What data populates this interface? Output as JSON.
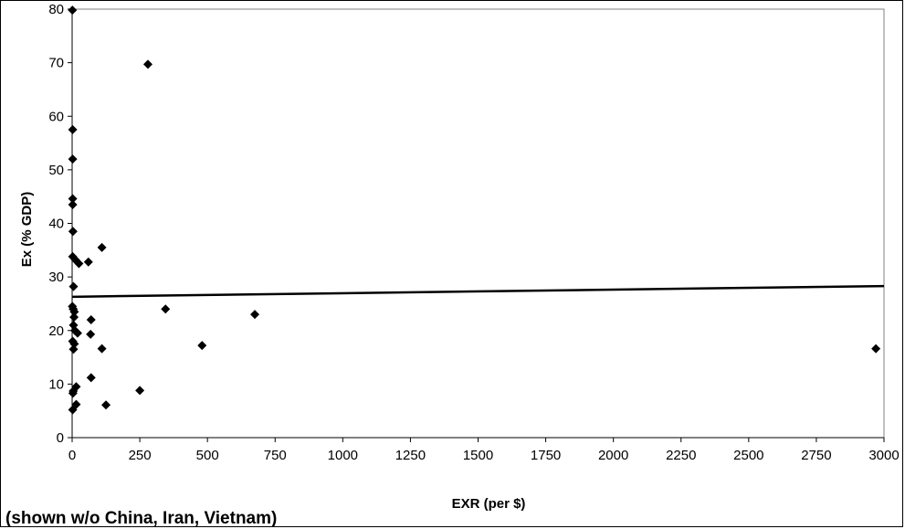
{
  "chart_data": {
    "type": "scatter",
    "title": "",
    "xlabel": "EXR (per $)",
    "ylabel": "Ex (% GDP)",
    "note": "(shown w/o China, Iran, Vietnam)",
    "xlim": [
      0,
      3000
    ],
    "ylim": [
      0,
      80
    ],
    "xticks": [
      0,
      250,
      500,
      750,
      1000,
      1250,
      1500,
      1750,
      2000,
      2250,
      2500,
      2750,
      3000
    ],
    "yticks": [
      0,
      10,
      20,
      30,
      40,
      50,
      60,
      70,
      80
    ],
    "grid": false,
    "legend": "none",
    "marker": "diamond",
    "marker_color": "#000000",
    "points": [
      {
        "x": 1,
        "y": 79.8
      },
      {
        "x": 280,
        "y": 69.7
      },
      {
        "x": 2,
        "y": 57.5
      },
      {
        "x": 2,
        "y": 52
      },
      {
        "x": 2,
        "y": 44.6
      },
      {
        "x": 2,
        "y": 43.5
      },
      {
        "x": 3,
        "y": 38.5
      },
      {
        "x": 110,
        "y": 35.5
      },
      {
        "x": 2,
        "y": 33.8
      },
      {
        "x": 12,
        "y": 33.2
      },
      {
        "x": 25,
        "y": 32.5
      },
      {
        "x": 60,
        "y": 32.8
      },
      {
        "x": 5,
        "y": 28.2
      },
      {
        "x": 1,
        "y": 24.5
      },
      {
        "x": 4,
        "y": 24
      },
      {
        "x": 345,
        "y": 24
      },
      {
        "x": 8,
        "y": 23.5
      },
      {
        "x": 675,
        "y": 23
      },
      {
        "x": 7,
        "y": 22.5
      },
      {
        "x": 70,
        "y": 22
      },
      {
        "x": 5,
        "y": 21
      },
      {
        "x": 10,
        "y": 20
      },
      {
        "x": 20,
        "y": 19.5
      },
      {
        "x": 68,
        "y": 19.3
      },
      {
        "x": 2,
        "y": 18
      },
      {
        "x": 8,
        "y": 17.5
      },
      {
        "x": 480,
        "y": 17.2
      },
      {
        "x": 5,
        "y": 16.5
      },
      {
        "x": 110,
        "y": 16.6
      },
      {
        "x": 2970,
        "y": 16.6
      },
      {
        "x": 70,
        "y": 11.2
      },
      {
        "x": 15,
        "y": 9.5
      },
      {
        "x": 4,
        "y": 8.7
      },
      {
        "x": 250,
        "y": 8.8
      },
      {
        "x": 3,
        "y": 8.3
      },
      {
        "x": 15,
        "y": 6.2
      },
      {
        "x": 125,
        "y": 6.1
      },
      {
        "x": 2,
        "y": 5.2
      }
    ],
    "trendline": {
      "type": "linear",
      "x": [
        0,
        3000
      ],
      "y": [
        26.3,
        28.3
      ]
    }
  }
}
